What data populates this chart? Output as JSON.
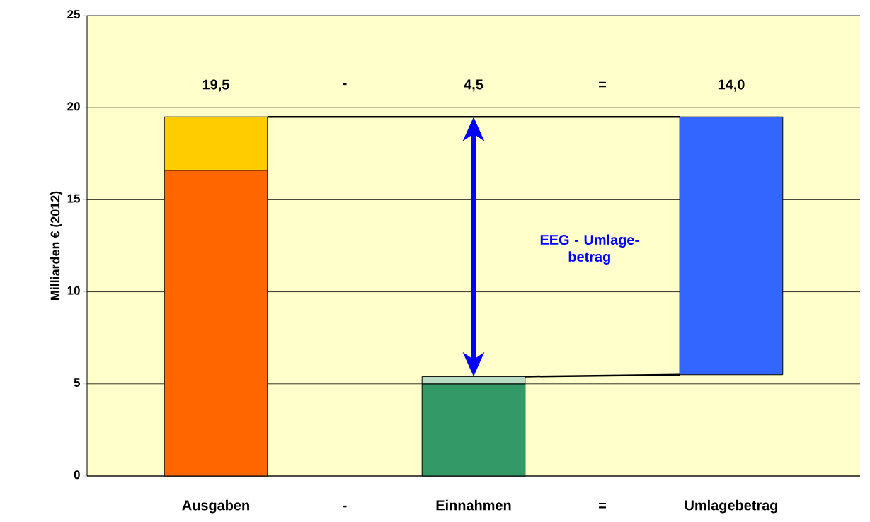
{
  "chart_data": {
    "type": "bar",
    "ylabel": "Milliarden € (2012)",
    "categories": [
      "Ausgaben",
      "Einnahmen",
      "Umlagebetrag"
    ],
    "series": [
      {
        "colors": [
          "#ff6600",
          "#339966",
          null
        ],
        "values": [
          16.6,
          5.0,
          null
        ],
        "base": [
          0,
          0,
          null
        ]
      },
      {
        "colors": [
          "#ffcc00",
          "#b8dcc4",
          "#3366ff"
        ],
        "values": [
          2.9,
          0.4,
          14.0
        ],
        "base": [
          16.6,
          5.0,
          5.5
        ]
      }
    ],
    "ylim": [
      0,
      25
    ],
    "yticks": [
      0,
      5,
      10,
      15,
      20,
      25
    ],
    "grid": "y",
    "annotations": [
      "19,5",
      "-",
      "4,5",
      "=",
      "14,0",
      "-",
      "=",
      "EEG - Umlage-betrag"
    ]
  }
}
